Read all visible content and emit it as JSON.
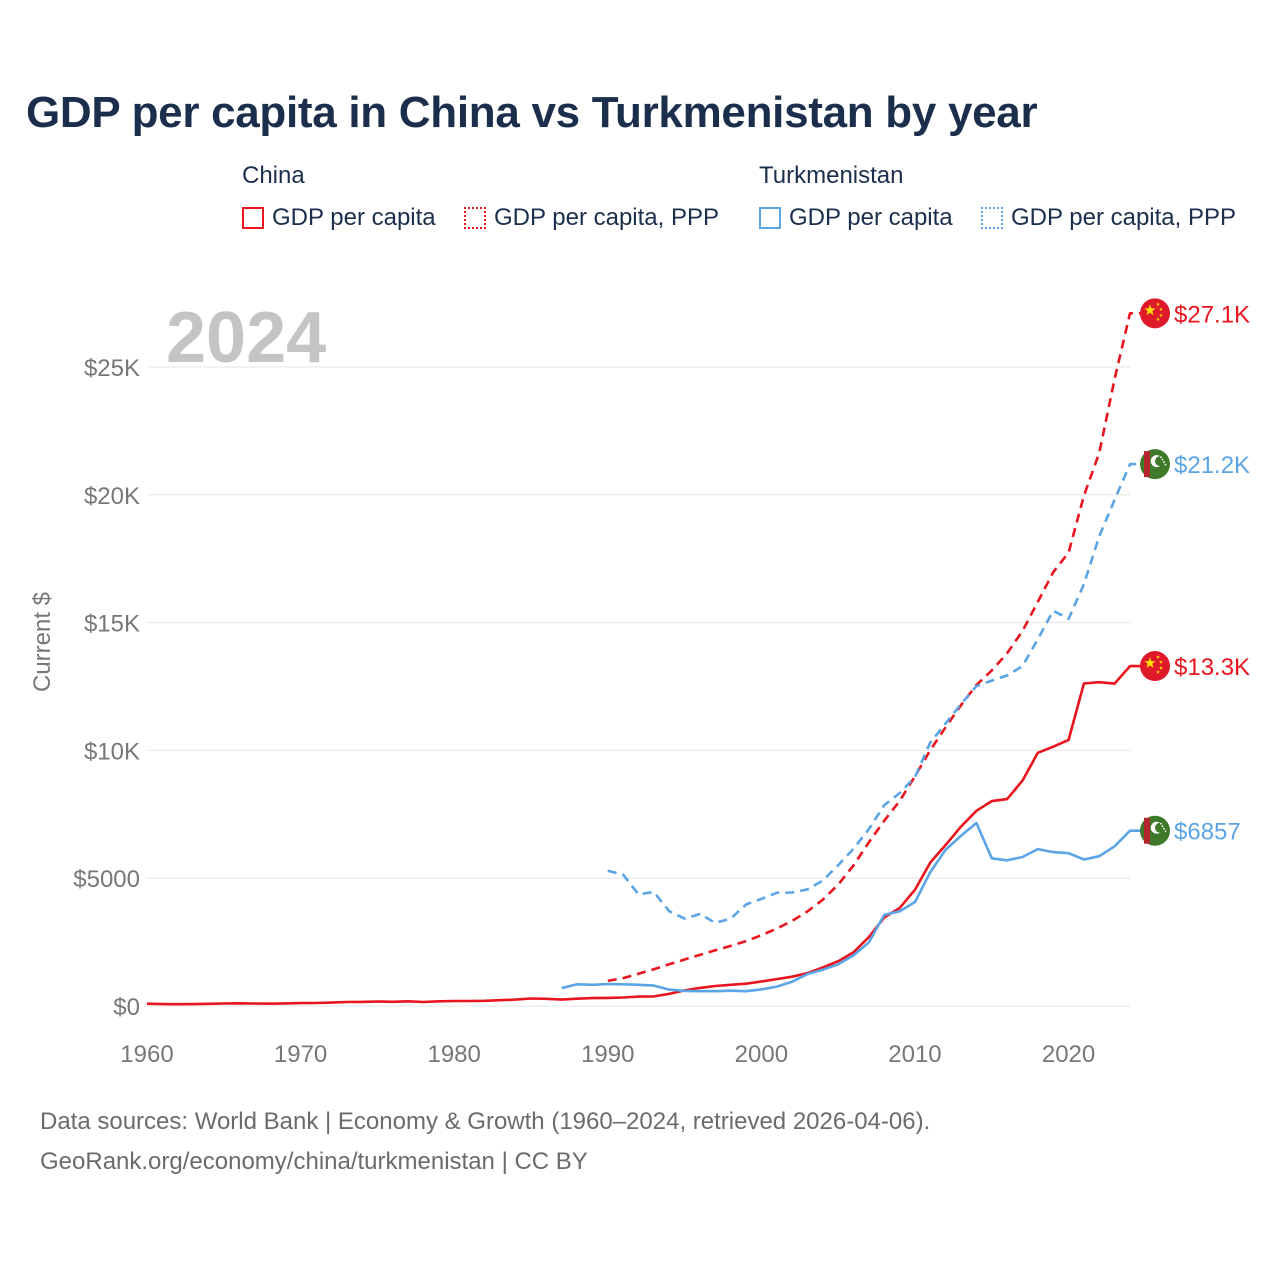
{
  "title": "GDP per capita in China vs Turkmenistan by year",
  "legend": {
    "china": {
      "name": "China",
      "solid_label": "GDP per capita",
      "dashed_label": "GDP per capita, PPP",
      "color": "#e8141e"
    },
    "turkmenistan": {
      "name": "Turkmenistan",
      "solid_label": "GDP per capita",
      "dashed_label": "GDP per capita, PPP",
      "color": "#5ba4e5"
    }
  },
  "footer": {
    "line1": "Data sources: World Bank | Economy & Growth (1960–2024, retrieved 2026-04-06).",
    "line2": "GeoRank.org/economy/china/turkmenistan | CC BY"
  },
  "chart_data": {
    "type": "line",
    "year_label": "2024",
    "ylabel": "Current $",
    "xlim": [
      1960,
      2024
    ],
    "ylim": [
      0,
      27500
    ],
    "yticks": [
      {
        "value": 0,
        "label": "$0"
      },
      {
        "value": 5000,
        "label": "$5000"
      },
      {
        "value": 10000,
        "label": "$10K"
      },
      {
        "value": 15000,
        "label": "$15K"
      },
      {
        "value": 20000,
        "label": "$20K"
      },
      {
        "value": 25000,
        "label": "$25K"
      }
    ],
    "xticks": [
      1960,
      1970,
      1980,
      1990,
      2000,
      2010,
      2020
    ],
    "series": [
      {
        "id": "china-gdp",
        "name": "China GDP per capita",
        "color": "#e8141e",
        "dash": false,
        "end_label": "$13.3K",
        "flag": "china",
        "x": [
          1960,
          1961,
          1962,
          1963,
          1964,
          1965,
          1966,
          1967,
          1968,
          1969,
          1970,
          1971,
          1972,
          1973,
          1974,
          1975,
          1976,
          1977,
          1978,
          1979,
          1980,
          1981,
          1982,
          1983,
          1984,
          1985,
          1986,
          1987,
          1988,
          1989,
          1990,
          1991,
          1992,
          1993,
          1994,
          1995,
          1996,
          1997,
          1998,
          1999,
          2000,
          2001,
          2002,
          2003,
          2004,
          2005,
          2006,
          2007,
          2008,
          2009,
          2010,
          2011,
          2012,
          2013,
          2014,
          2015,
          2016,
          2017,
          2018,
          2019,
          2020,
          2021,
          2022,
          2023,
          2024
        ],
        "values": [
          90,
          76,
          70,
          74,
          85,
          98,
          104,
          96,
          91,
          100,
          113,
          119,
          132,
          157,
          160,
          178,
          165,
          185,
          156,
          183,
          195,
          197,
          203,
          225,
          251,
          294,
          282,
          252,
          284,
          311,
          318,
          333,
          366,
          377,
          473,
          610,
          709,
          782,
          829,
          873,
          959,
          1053,
          1148,
          1288,
          1508,
          1753,
          2099,
          2694,
          3468,
          3832,
          4550,
          5614,
          6301,
          7020,
          7636,
          8016,
          8094,
          8817,
          9905,
          10144,
          10409,
          12618,
          12670,
          12614,
          13300
        ]
      },
      {
        "id": "china-gdp-ppp",
        "name": "China GDP per capita, PPP",
        "color": "#e8141e",
        "dash": true,
        "end_label": "$27.1K",
        "flag": "china",
        "x": [
          1990,
          1991,
          1992,
          1993,
          1994,
          1995,
          1996,
          1997,
          1998,
          1999,
          2000,
          2001,
          2002,
          2003,
          2004,
          2005,
          2006,
          2007,
          2008,
          2009,
          2010,
          2011,
          2012,
          2013,
          2014,
          2015,
          2016,
          2017,
          2018,
          2019,
          2020,
          2021,
          2022,
          2023,
          2024
        ],
        "values": [
          982,
          1090,
          1260,
          1440,
          1630,
          1820,
          2000,
          2180,
          2350,
          2540,
          2770,
          3030,
          3330,
          3700,
          4160,
          4750,
          5500,
          6410,
          7250,
          8020,
          8990,
          10010,
          10910,
          11770,
          12560,
          13130,
          13800,
          14670,
          15810,
          16970,
          17740,
          19960,
          21650,
          24530,
          27100
        ]
      },
      {
        "id": "tkm-gdp",
        "name": "Turkmenistan GDP per capita",
        "color": "#5ba4e5",
        "dash": false,
        "end_label": "$6857",
        "flag": "turkmenistan",
        "x": [
          1987,
          1988,
          1989,
          1990,
          1991,
          1992,
          1993,
          1994,
          1995,
          1996,
          1997,
          1998,
          1999,
          2000,
          2001,
          2002,
          2003,
          2004,
          2005,
          2006,
          2007,
          2008,
          2009,
          2010,
          2011,
          2012,
          2013,
          2014,
          2015,
          2016,
          2017,
          2018,
          2019,
          2020,
          2021,
          2022,
          2023,
          2024
        ],
        "values": [
          700,
          850,
          830,
          860,
          850,
          830,
          800,
          640,
          590,
          580,
          580,
          600,
          580,
          650,
          760,
          950,
          1250,
          1420,
          1630,
          1980,
          2490,
          3570,
          3700,
          4070,
          5240,
          6120,
          6660,
          7160,
          5780,
          5700,
          5830,
          6140,
          6020,
          5980,
          5730,
          5860,
          6250,
          6857
        ]
      },
      {
        "id": "tkm-gdp-ppp",
        "name": "Turkmenistan GDP per capita, PPP",
        "color": "#5ba4e5",
        "dash": true,
        "end_label": "$21.2K",
        "flag": "turkmenistan",
        "x": [
          1990,
          1991,
          1992,
          1993,
          1994,
          1995,
          1996,
          1997,
          1998,
          1999,
          2000,
          2001,
          2002,
          2003,
          2004,
          2005,
          2006,
          2007,
          2008,
          2009,
          2010,
          2011,
          2012,
          2013,
          2014,
          2015,
          2016,
          2017,
          2018,
          2019,
          2020,
          2021,
          2022,
          2023,
          2024
        ],
        "values": [
          5290,
          5140,
          4370,
          4460,
          3710,
          3420,
          3600,
          3250,
          3420,
          3970,
          4190,
          4430,
          4440,
          4560,
          4910,
          5510,
          6150,
          6920,
          7860,
          8330,
          8960,
          10310,
          11060,
          11810,
          12510,
          12730,
          12930,
          13300,
          14350,
          15460,
          15150,
          16500,
          18390,
          19800,
          21200
        ]
      }
    ]
  }
}
